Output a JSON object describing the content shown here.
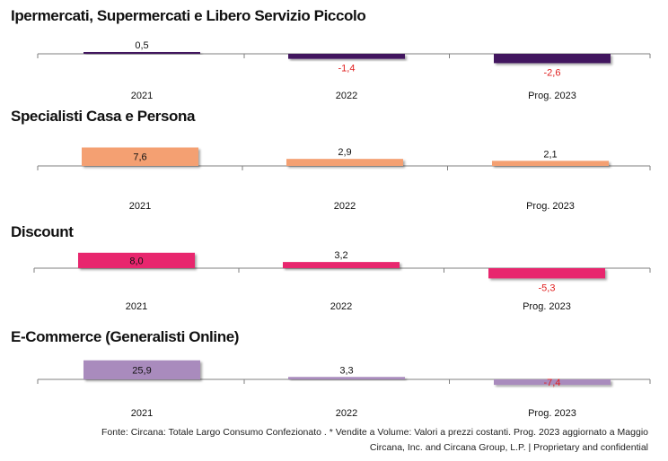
{
  "chart_data": [
    {
      "type": "bar",
      "title": "Ipermercati, Supermercati e Libero Servizio Piccolo",
      "categories": [
        "2021",
        "2022",
        "Prog. 2023"
      ],
      "values": [
        0.5,
        -1.4,
        -2.6
      ],
      "value_labels": [
        "0,5",
        "-1,4",
        "-2,6"
      ],
      "color": "#42145f"
    },
    {
      "type": "bar",
      "title": "Specialisti Casa e Persona",
      "categories": [
        "2021",
        "2022",
        "Prog. 2023"
      ],
      "values": [
        7.6,
        2.9,
        2.1
      ],
      "value_labels": [
        "7,6",
        "2,9",
        "2,1"
      ],
      "color": "#f4a072"
    },
    {
      "type": "bar",
      "title": "Discount",
      "categories": [
        "2021",
        "2022",
        "Prog. 2023"
      ],
      "values": [
        8.0,
        3.2,
        -5.3
      ],
      "value_labels": [
        "8,0",
        "3,2",
        "-5,3"
      ],
      "color": "#e8266e"
    },
    {
      "type": "bar",
      "title": "E-Commerce (Generalisti Online)",
      "categories": [
        "2021",
        "2022",
        "Prog. 2023"
      ],
      "values": [
        25.9,
        3.3,
        -7.4
      ],
      "value_labels": [
        "25,9",
        "3,3",
        "-7,4"
      ],
      "color": "#a98bbd"
    }
  ],
  "colors": {
    "negative_label": "#e02020",
    "axis": "#7f7f7f"
  },
  "footer": {
    "source": "Fonte: Circana: Totale Largo Consumo Confezionato . * Vendite a Volume: Valori a prezzi costanti.  Prog. 2023 aggiornato a Maggio",
    "copyright": "Circana, Inc. and Circana Group, L.P. |  Proprietary and confidential"
  }
}
